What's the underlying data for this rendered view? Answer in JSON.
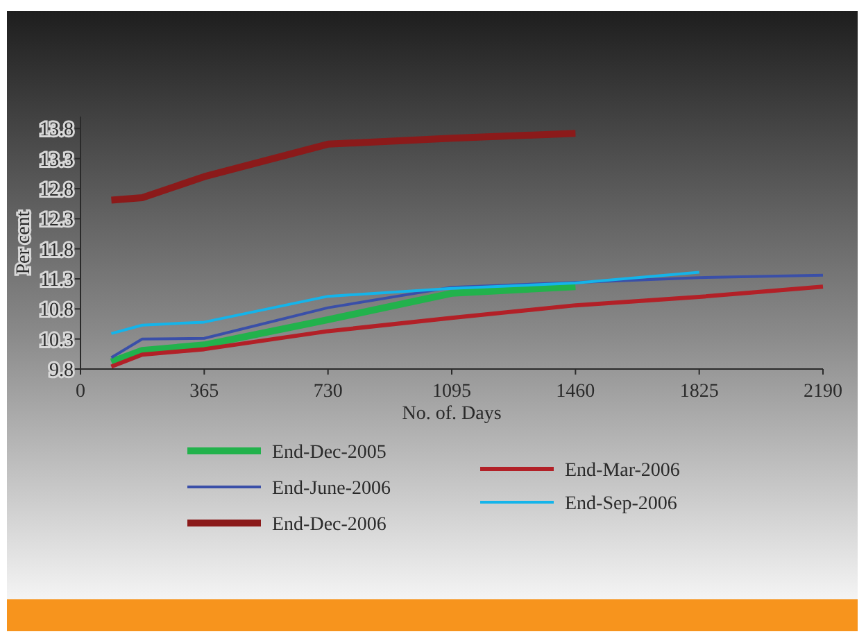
{
  "chart_data": {
    "type": "line",
    "xlabel": "No. of. Days",
    "ylabel": "Per cent",
    "x": [
      91,
      182,
      365,
      730,
      1095,
      1460,
      1825,
      2190
    ],
    "xlim": [
      0,
      2190
    ],
    "xticks": [
      0,
      365,
      730,
      1095,
      1460,
      1825,
      2190
    ],
    "ylim": [
      9.8,
      14.0
    ],
    "yticks": [
      9.8,
      10.3,
      10.8,
      11.3,
      11.8,
      12.3,
      12.8,
      13.3,
      13.8
    ],
    "grid": false,
    "legend": "bottom",
    "marker": "none",
    "line_style": "solid",
    "series": [
      {
        "name": "End-Dec-2005",
        "color": "#22b24c",
        "values": [
          9.92,
          10.11,
          10.2,
          10.62,
          11.06,
          11.17,
          null,
          null
        ]
      },
      {
        "name": "End-June-2006",
        "color": "#3a4fa8",
        "values": [
          9.99,
          10.3,
          10.31,
          10.82,
          11.16,
          11.24,
          11.32,
          11.36
        ]
      },
      {
        "name": "End-Dec-2006",
        "color": "#8b1a1a",
        "values": [
          12.61,
          12.65,
          13.0,
          13.54,
          13.64,
          13.72,
          null,
          null
        ]
      },
      {
        "name": "End-Mar-2006",
        "color": "#b22027",
        "values": [
          9.84,
          10.04,
          10.13,
          10.43,
          10.65,
          10.86,
          11.0,
          11.17
        ]
      },
      {
        "name": "End-Sep-2006",
        "color": "#14b4ea",
        "values": [
          10.39,
          10.53,
          10.58,
          11.01,
          11.14,
          11.23,
          11.41,
          null
        ]
      }
    ]
  }
}
